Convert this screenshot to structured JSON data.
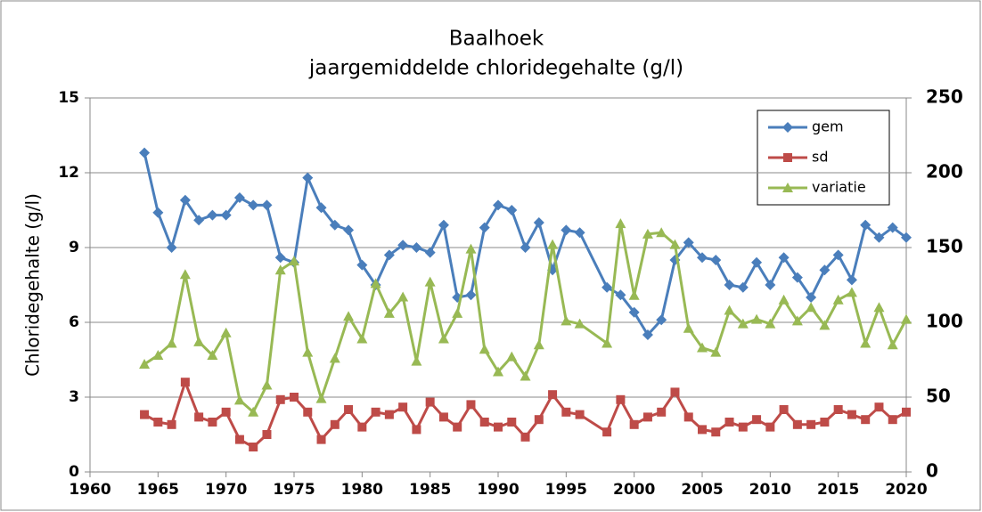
{
  "chart_data": {
    "type": "line",
    "title": "Baalhoek",
    "subtitle": "jaargemiddelde chloridegehalte (g/l)",
    "y_label": "Chloridegehalte (g/l)",
    "x": [
      1964,
      1965,
      1966,
      1967,
      1968,
      1969,
      1970,
      1971,
      1972,
      1973,
      1974,
      1975,
      1976,
      1977,
      1978,
      1979,
      1980,
      1981,
      1982,
      1983,
      1984,
      1985,
      1986,
      1987,
      1988,
      1989,
      1990,
      1991,
      1992,
      1993,
      1994,
      1995,
      1996,
      1998,
      1999,
      2000,
      2001,
      2002,
      2003,
      2004,
      2005,
      2006,
      2007,
      2008,
      2009,
      2010,
      2011,
      2012,
      2013,
      2014,
      2015,
      2016,
      2017,
      2018,
      2019,
      2020
    ],
    "series": [
      {
        "name": "gem",
        "color": "#4a7ebb",
        "marker": "diamond",
        "axis": "y",
        "values": [
          12.8,
          10.4,
          9.0,
          10.9,
          10.1,
          10.3,
          10.3,
          11.0,
          10.7,
          10.7,
          8.6,
          8.4,
          11.8,
          10.6,
          9.9,
          9.7,
          8.3,
          7.5,
          8.7,
          9.1,
          9.0,
          8.8,
          9.9,
          7.0,
          7.1,
          9.8,
          10.7,
          10.5,
          9.0,
          10.0,
          8.1,
          9.7,
          9.6,
          7.4,
          7.1,
          6.4,
          5.5,
          6.1,
          8.5,
          9.2,
          8.6,
          8.5,
          7.5,
          7.4,
          8.4,
          7.5,
          8.6,
          7.8,
          7.0,
          8.1,
          8.7,
          7.7,
          9.9,
          9.4,
          9.8,
          9.4
        ]
      },
      {
        "name": "sd",
        "color": "#be4b48",
        "marker": "square",
        "axis": "y",
        "values": [
          2.3,
          2.0,
          1.9,
          3.6,
          2.2,
          2.0,
          2.4,
          1.3,
          1.0,
          1.5,
          2.9,
          3.0,
          2.4,
          1.3,
          1.9,
          2.5,
          1.8,
          2.4,
          2.3,
          2.6,
          1.7,
          2.8,
          2.2,
          1.8,
          2.7,
          2.0,
          1.8,
          2.0,
          1.4,
          2.1,
          3.1,
          2.4,
          2.3,
          1.6,
          2.9,
          1.9,
          2.2,
          2.4,
          3.2,
          2.2,
          1.7,
          1.6,
          2.0,
          1.8,
          2.1,
          1.8,
          2.5,
          1.9,
          1.9,
          2.0,
          2.5,
          2.3,
          2.1,
          2.6,
          2.1,
          2.4
        ]
      },
      {
        "name": "variatie",
        "color": "#98b954",
        "marker": "triangle",
        "axis": "y2",
        "values": [
          72,
          78,
          86,
          132,
          87,
          78,
          93,
          48,
          40,
          58,
          135,
          141,
          80,
          49,
          76,
          104,
          89,
          126,
          106,
          117,
          74,
          127,
          89,
          106,
          149,
          82,
          67,
          77,
          64,
          85,
          152,
          101,
          99,
          86,
          166,
          118,
          159,
          160,
          152,
          96,
          83,
          80,
          108,
          99,
          102,
          99,
          115,
          101,
          110,
          98,
          115,
          120,
          86,
          110,
          85,
          102
        ]
      }
    ],
    "xlim": [
      1960,
      2020
    ],
    "xticks": [
      1960,
      1965,
      1970,
      1975,
      1980,
      1985,
      1990,
      1995,
      2000,
      2005,
      2010,
      2015,
      2020
    ],
    "ylim": [
      0,
      15
    ],
    "yticks": [
      0,
      3,
      6,
      9,
      12,
      15
    ],
    "y2lim": [
      0,
      250
    ],
    "y2ticks": [
      0,
      50,
      100,
      150,
      200,
      250
    ],
    "grid": true,
    "legend": "upper right"
  }
}
